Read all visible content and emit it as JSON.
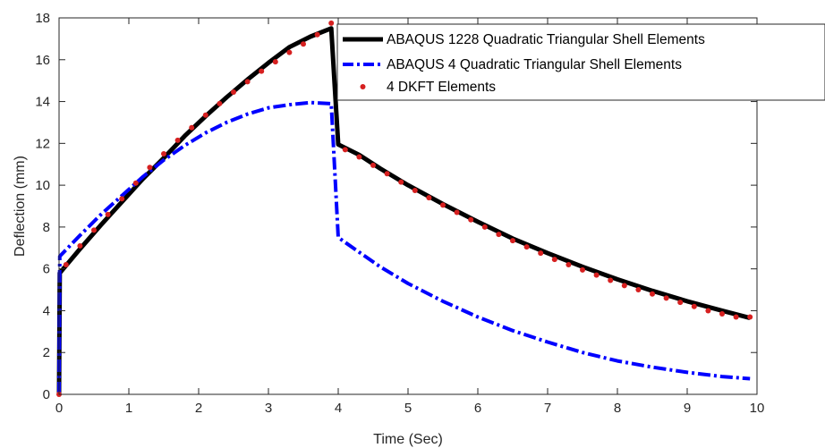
{
  "chart_data": {
    "type": "line",
    "title": "",
    "xlabel": "Time (Sec)",
    "ylabel": "Deflection (mm)",
    "xlim": [
      0,
      10
    ],
    "ylim": [
      0,
      18
    ],
    "xticks": [
      0,
      1,
      2,
      3,
      4,
      5,
      6,
      7,
      8,
      9,
      10
    ],
    "yticks": [
      0,
      2,
      4,
      6,
      8,
      10,
      12,
      14,
      16,
      18
    ],
    "grid": false,
    "legend_position": "top-right",
    "series": [
      {
        "name": "ABAQUS 1228 Quadratic Triangular Shell Elements",
        "style": "solid",
        "color": "#000000",
        "x": [
          0,
          0.01,
          0.3,
          0.6,
          0.9,
          1.2,
          1.5,
          1.8,
          2.1,
          2.4,
          2.7,
          3.0,
          3.3,
          3.6,
          3.9,
          4.0,
          4.3,
          4.6,
          5.0,
          5.5,
          6.0,
          6.5,
          7.0,
          7.5,
          8.0,
          8.5,
          9.0,
          9.5,
          9.9
        ],
        "y": [
          0,
          5.8,
          6.95,
          8.1,
          9.2,
          10.3,
          11.3,
          12.35,
          13.3,
          14.2,
          15.05,
          15.85,
          16.6,
          17.1,
          17.5,
          11.95,
          11.45,
          10.8,
          10.0,
          9.1,
          8.25,
          7.45,
          6.75,
          6.1,
          5.5,
          4.95,
          4.45,
          4.0,
          3.65
        ]
      },
      {
        "name": "ABAQUS 4 Quadratic Triangular Shell Elements",
        "style": "dashdot",
        "color": "#0000ff",
        "x": [
          0,
          0.01,
          0.3,
          0.6,
          0.9,
          1.2,
          1.5,
          1.8,
          2.1,
          2.4,
          2.7,
          3.0,
          3.3,
          3.6,
          3.9,
          4.0,
          4.3,
          4.6,
          5.0,
          5.5,
          6.0,
          6.5,
          7.0,
          7.5,
          8.0,
          8.5,
          9.0,
          9.5,
          9.9
        ],
        "y": [
          0,
          6.6,
          7.6,
          8.6,
          9.5,
          10.4,
          11.2,
          11.9,
          12.5,
          13.0,
          13.4,
          13.7,
          13.85,
          13.95,
          13.9,
          7.5,
          6.8,
          6.1,
          5.3,
          4.45,
          3.7,
          3.05,
          2.5,
          2.0,
          1.6,
          1.3,
          1.05,
          0.85,
          0.75
        ]
      },
      {
        "name": "4 DKFT Elements",
        "style": "markers",
        "color": "#d62020",
        "x": [
          0,
          0.1,
          0.3,
          0.5,
          0.7,
          0.9,
          1.1,
          1.3,
          1.5,
          1.7,
          1.9,
          2.1,
          2.3,
          2.5,
          2.7,
          2.9,
          3.1,
          3.3,
          3.5,
          3.7,
          3.9,
          4.1,
          4.3,
          4.5,
          4.7,
          4.9,
          5.1,
          5.3,
          5.5,
          5.7,
          5.9,
          6.1,
          6.3,
          6.5,
          6.7,
          6.9,
          7.1,
          7.3,
          7.5,
          7.7,
          7.9,
          8.1,
          8.3,
          8.5,
          8.7,
          8.9,
          9.1,
          9.3,
          9.5,
          9.7,
          9.9
        ],
        "y": [
          0,
          6.2,
          7.1,
          7.85,
          8.6,
          9.35,
          10.1,
          10.85,
          11.5,
          12.15,
          12.75,
          13.35,
          13.9,
          14.45,
          14.95,
          15.45,
          15.9,
          16.35,
          16.75,
          17.2,
          17.75,
          11.7,
          11.35,
          10.95,
          10.55,
          10.15,
          9.75,
          9.4,
          9.05,
          8.7,
          8.35,
          8.0,
          7.65,
          7.35,
          7.05,
          6.75,
          6.45,
          6.2,
          5.95,
          5.7,
          5.45,
          5.2,
          5.0,
          4.8,
          4.6,
          4.4,
          4.2,
          4.0,
          3.85,
          3.7,
          3.7
        ]
      }
    ]
  }
}
